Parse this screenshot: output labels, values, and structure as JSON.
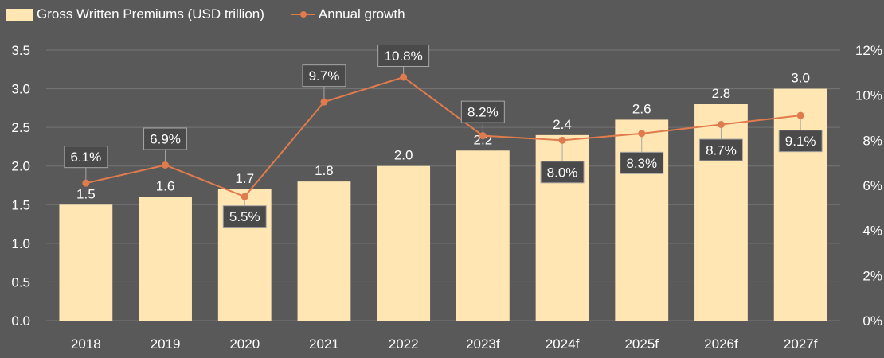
{
  "chart_data": {
    "type": "bar",
    "categories": [
      "2018",
      "2019",
      "2020",
      "2021",
      "2022",
      "2023f",
      "2024f",
      "2025f",
      "2026f",
      "2027f"
    ],
    "series": [
      {
        "name": "Gross Written Premiums (USD trillion)",
        "type": "bar",
        "axis": "left",
        "values": [
          1.5,
          1.6,
          1.7,
          1.8,
          2.0,
          2.2,
          2.4,
          2.6,
          2.8,
          3.0
        ],
        "labels": [
          "1.5",
          "1.6",
          "1.7",
          "1.8",
          "2.0",
          "2.2",
          "2.4",
          "2.6",
          "2.8",
          "3.0"
        ],
        "color": "#FFE6B3"
      },
      {
        "name": "Annual growth",
        "type": "line",
        "axis": "right",
        "values": [
          6.1,
          6.9,
          5.5,
          9.7,
          10.8,
          8.2,
          8.0,
          8.3,
          8.7,
          9.1
        ],
        "labels": [
          "6.1%",
          "6.9%",
          "5.5%",
          "9.7%",
          "10.8%",
          "8.2%",
          "8.0%",
          "8.3%",
          "8.7%",
          "9.1%"
        ],
        "color": "#E07B4E"
      }
    ],
    "y_left": {
      "min": 0,
      "max": 3.5,
      "ticks": [
        "0.0",
        "0.5",
        "1.0",
        "1.5",
        "2.0",
        "2.5",
        "3.0",
        "3.5"
      ]
    },
    "y_right": {
      "min": 0,
      "max": 12,
      "ticks": [
        "0%",
        "2%",
        "4%",
        "6%",
        "8%",
        "10%",
        "12%"
      ]
    },
    "grid": true,
    "legend_position": "top-left",
    "colors": {
      "background": "#595959",
      "grid": "#767676",
      "text": "#FFFFFF",
      "callout_bg": "#4A4A4A",
      "callout_border": "#A6A6A6"
    }
  }
}
